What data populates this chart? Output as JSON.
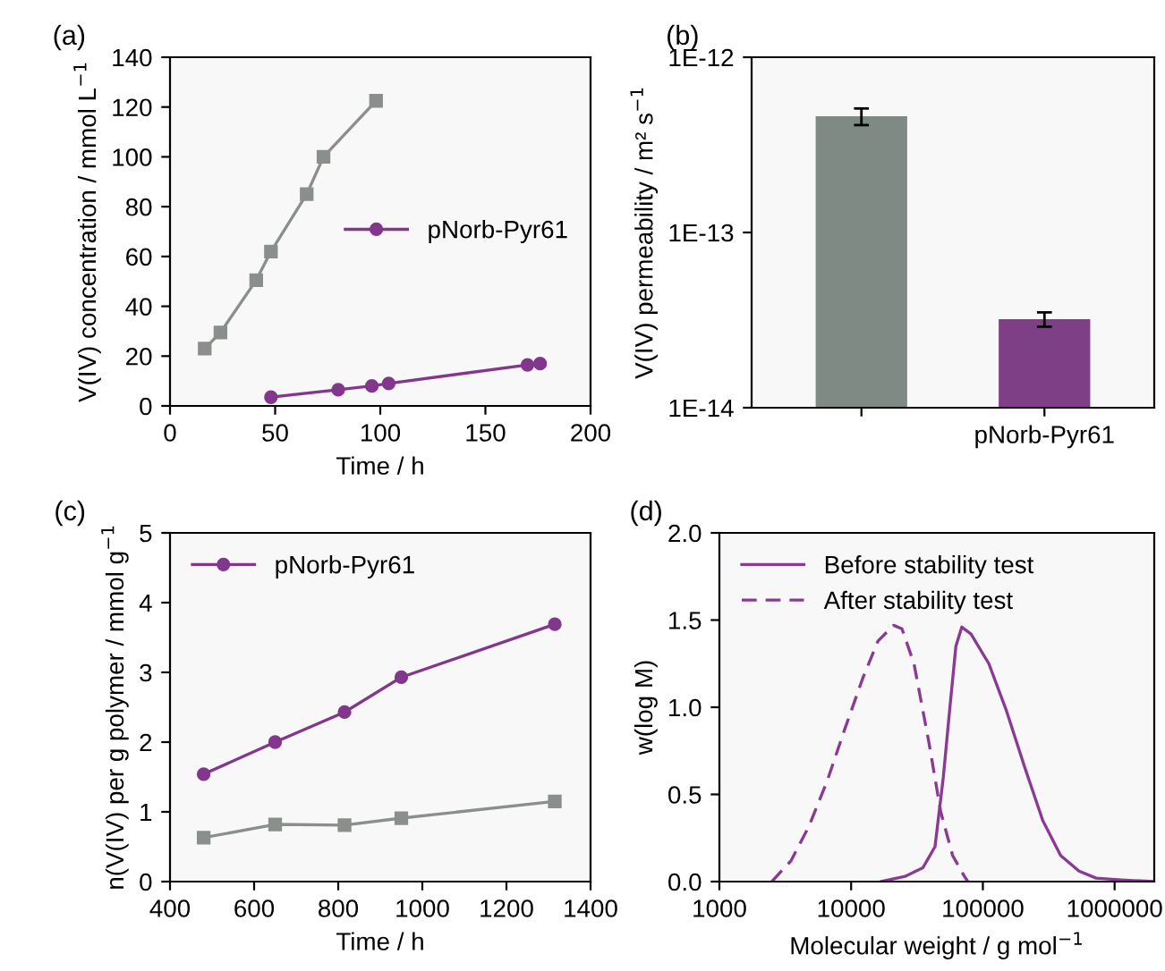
{
  "chart_data": [
    {
      "type": "line",
      "title": "(a)",
      "xlabel": "Time / h",
      "ylabel": "V(IV) concentration / mmol L$^{−1}$",
      "xlim": [
        0,
        200
      ],
      "xticks": [
        0,
        50,
        100,
        150,
        200
      ],
      "ylim": [
        0,
        140
      ],
      "yticks": [
        0,
        20,
        40,
        60,
        80,
        100,
        120,
        140
      ],
      "legend": "right",
      "grid": false,
      "series": [
        {
          "color": "#8a8f8c",
          "marker": "square",
          "x": [
            16.5,
            24,
            41,
            48,
            65,
            73,
            98
          ],
          "values": [
            23,
            29.5,
            50.5,
            62,
            85,
            100,
            122.5
          ]
        },
        {
          "name": "pNorb-Pyr61",
          "color": "#82368c",
          "marker": "circle",
          "x": [
            48,
            80,
            96,
            104,
            170,
            176
          ],
          "values": [
            3.5,
            6.5,
            8,
            9,
            16.5,
            17
          ]
        }
      ]
    },
    {
      "type": "bar",
      "title": "(b)",
      "ylabel": "V(IV) permeability / m² s$^{−1}$",
      "log": "y",
      "ylim": [
        1e-14,
        1e-12
      ],
      "yticks": [
        {
          "value": 1e-14,
          "label": "1E-14"
        },
        {
          "value": 1e-13,
          "label": "1E-13"
        },
        {
          "value": 1e-12,
          "label": "1E-12"
        }
      ],
      "categories": [
        null,
        "pNorb-Pyr61"
      ],
      "values": [
        4.6e-13,
        3.2e-14
      ],
      "errors": [
        5e-14,
        3e-15
      ],
      "colors": [
        "#7f8a84",
        "#7f3f86"
      ],
      "legend": false,
      "grid": false
    },
    {
      "type": "line",
      "title": "(c)",
      "xlabel": "Time / h",
      "ylabel": "n(V(IV) per g polymer / mmol g$^{−1}$",
      "xlim": [
        400,
        1400
      ],
      "xticks": [
        400,
        600,
        800,
        1000,
        1200,
        1400
      ],
      "ylim": [
        0,
        5
      ],
      "yticks": [
        0,
        1,
        2,
        3,
        4,
        5
      ],
      "legend": "top left",
      "grid": false,
      "series": [
        {
          "color": "#8a8f8c",
          "marker": "square",
          "x": [
            480,
            650,
            815,
            950,
            1315
          ],
          "values": [
            0.63,
            0.82,
            0.81,
            0.91,
            1.15
          ]
        },
        {
          "name": "pNorb-Pyr61",
          "color": "#82368c",
          "marker": "circle",
          "x": [
            480,
            650,
            815,
            950,
            1315
          ],
          "values": [
            1.54,
            2.0,
            2.43,
            2.93,
            3.69
          ]
        }
      ]
    },
    {
      "type": "line",
      "title": "(d)",
      "xlabel": "Molecular weight / g mol$^{−1}$",
      "ylabel": "w(log M)",
      "log": "x",
      "xlim": [
        1000,
        2000000
      ],
      "xticks": [
        1000,
        10000,
        100000,
        1000000
      ],
      "ylim": [
        0,
        2
      ],
      "yticks": [
        {
          "value": 0,
          "label": "0.0"
        },
        {
          "value": 0.5,
          "label": "0.5"
        },
        {
          "value": 1,
          "label": "1.0"
        },
        {
          "value": 1.5,
          "label": "1.5"
        },
        {
          "value": 2,
          "label": "2.0"
        }
      ],
      "legend": "top left",
      "grid": false,
      "series": [
        {
          "name": "Before stability test",
          "color": "#8a3a93",
          "line_style": "solid",
          "marker": "none",
          "x": [
            16900,
            25700,
            35100,
            43300,
            50100,
            56200,
            62400,
            69200,
            81300,
            111000,
            151000,
            209000,
            285000,
            389000,
            537000,
            724000,
            1120000,
            2000000
          ],
          "values": [
            0,
            0.03,
            0.08,
            0.2,
            0.6,
            1.0,
            1.35,
            1.46,
            1.42,
            1.25,
            0.98,
            0.65,
            0.35,
            0.15,
            0.06,
            0.02,
            0.01,
            0
          ]
        },
        {
          "name": "After stability test",
          "color": "#8a3a93",
          "line_style": "dashed",
          "marker": "none",
          "x": [
            2500,
            3500,
            4800,
            6600,
            9000,
            12300,
            16000,
            21000,
            24300,
            30000,
            38900,
            47900,
            58900,
            72400,
            77000
          ],
          "values": [
            0,
            0.12,
            0.32,
            0.58,
            0.88,
            1.17,
            1.38,
            1.47,
            1.45,
            1.25,
            0.8,
            0.4,
            0.15,
            0.03,
            0
          ]
        }
      ]
    }
  ]
}
